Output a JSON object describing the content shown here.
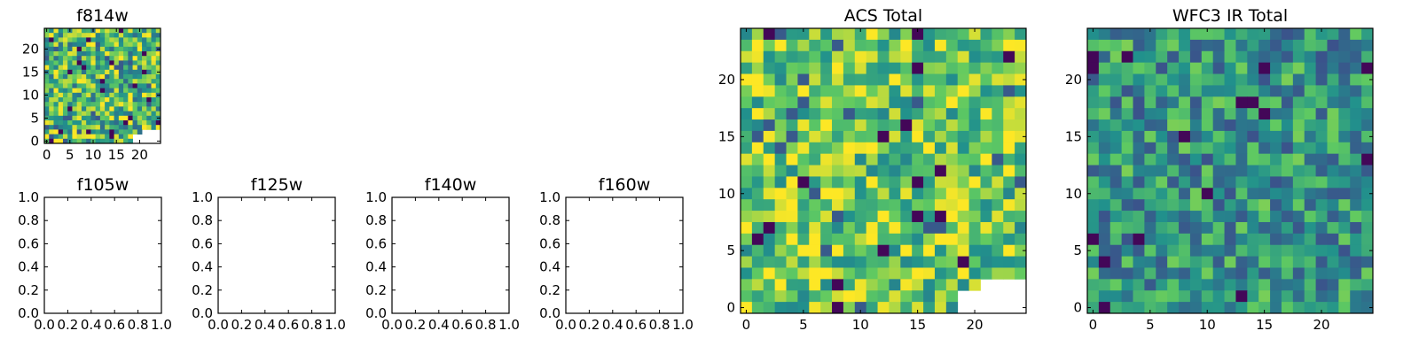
{
  "chart_data": [
    {
      "type": "heatmap",
      "title": "f814w",
      "xlim": [
        -0.5,
        24.5
      ],
      "ylim": [
        -0.5,
        24.5
      ],
      "xticks": [
        0,
        5,
        10,
        15,
        20
      ],
      "yticks": [
        0,
        5,
        10,
        15,
        20
      ],
      "grid_size": 25,
      "colormap": "viridis",
      "missing_region": "bottom-right corner blank"
    },
    {
      "type": "empty",
      "title": "f105w",
      "xlim": [
        0,
        1
      ],
      "ylim": [
        0,
        1
      ],
      "xticks": [
        "0.0",
        "0.2",
        "0.4",
        "0.6",
        "0.8",
        "1.0"
      ],
      "yticks": [
        "0.0",
        "0.2",
        "0.4",
        "0.6",
        "0.8",
        "1.0"
      ]
    },
    {
      "type": "empty",
      "title": "f125w",
      "xlim": [
        0,
        1
      ],
      "ylim": [
        0,
        1
      ],
      "xticks": [
        "0.0",
        "0.2",
        "0.4",
        "0.6",
        "0.8",
        "1.0"
      ],
      "yticks": [
        "0.0",
        "0.2",
        "0.4",
        "0.6",
        "0.8",
        "1.0"
      ]
    },
    {
      "type": "empty",
      "title": "f140w",
      "xlim": [
        0,
        1
      ],
      "ylim": [
        0,
        1
      ],
      "xticks": [
        "0.0",
        "0.2",
        "0.4",
        "0.6",
        "0.8",
        "1.0"
      ],
      "yticks": [
        "0.0",
        "0.2",
        "0.4",
        "0.6",
        "0.8",
        "1.0"
      ]
    },
    {
      "type": "empty",
      "title": "f160w",
      "xlim": [
        0,
        1
      ],
      "ylim": [
        0,
        1
      ],
      "xticks": [
        "0.0",
        "0.2",
        "0.4",
        "0.6",
        "0.8",
        "1.0"
      ],
      "yticks": [
        "0.0",
        "0.2",
        "0.4",
        "0.6",
        "0.8",
        "1.0"
      ]
    },
    {
      "type": "heatmap",
      "title": "ACS Total",
      "xlim": [
        -0.5,
        24.5
      ],
      "ylim": [
        -0.5,
        24.5
      ],
      "xticks": [
        0,
        5,
        10,
        15,
        20
      ],
      "yticks": [
        0,
        5,
        10,
        15,
        20
      ],
      "grid_size": 25,
      "colormap": "viridis",
      "missing_region": "bottom-right corner blank"
    },
    {
      "type": "heatmap",
      "title": "WFC3 IR Total",
      "xlim": [
        -0.5,
        24.5
      ],
      "ylim": [
        -0.5,
        24.5
      ],
      "xticks": [
        0,
        5,
        10,
        15,
        20
      ],
      "yticks": [
        0,
        5,
        10,
        15,
        20
      ],
      "grid_size": 25,
      "colormap": "viridis"
    }
  ],
  "colors": {
    "viridis_dark": "#440154",
    "viridis_blue": "#31688e",
    "viridis_teal": "#21918c",
    "viridis_green": "#35b779",
    "viridis_yellow": "#fde725"
  }
}
